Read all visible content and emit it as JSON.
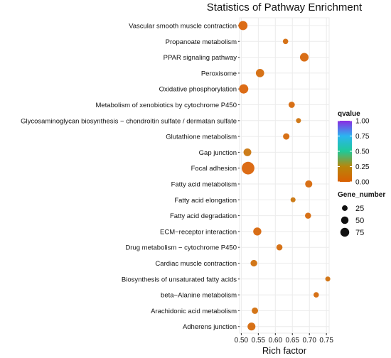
{
  "chart_data": {
    "type": "scatter",
    "title": "Statistics of Pathway Enrichment",
    "xlabel": "Rich factor",
    "ylabel": "",
    "xlim": [
      0.495,
      0.758
    ],
    "x_ticks": [
      "0.50",
      "0.55",
      "0.60",
      "0.65",
      "0.70",
      "0.75"
    ],
    "x_tick_values": [
      0.5,
      0.55,
      0.6,
      0.65,
      0.7,
      0.75
    ],
    "categories": [
      "Vascular smooth muscle contraction",
      "Propanoate metabolism",
      "PPAR signaling pathway",
      "Peroxisome",
      "Oxidative phosphorylation",
      "Metabolism of xenobiotics by cytochrome P450",
      "Glycosaminoglycan biosynthesis − chondroitin sulfate / dermatan sulfate",
      "Glutathione metabolism",
      "Gap junction",
      "Focal adhesion",
      "Fatty acid metabolism",
      "Fatty acid elongation",
      "Fatty acid degradation",
      "ECM−receptor interaction",
      "Drug metabolism − cytochrome P450",
      "Cardiac muscle contraction",
      "Biosynthesis of unsaturated fatty acids",
      "beta−Alanine metabolism",
      "Arachidonic acid metabolism",
      "Adherens junction"
    ],
    "points": [
      {
        "x": 0.505,
        "gene_number": 40,
        "qvalue": 0.0
      },
      {
        "x": 0.63,
        "gene_number": 10,
        "qvalue": 0.05
      },
      {
        "x": 0.685,
        "gene_number": 35,
        "qvalue": 0.02
      },
      {
        "x": 0.555,
        "gene_number": 32,
        "qvalue": 0.05
      },
      {
        "x": 0.507,
        "gene_number": 42,
        "qvalue": 0.0
      },
      {
        "x": 0.648,
        "gene_number": 15,
        "qvalue": 0.03
      },
      {
        "x": 0.668,
        "gene_number": 8,
        "qvalue": 0.1
      },
      {
        "x": 0.632,
        "gene_number": 16,
        "qvalue": 0.04
      },
      {
        "x": 0.518,
        "gene_number": 27,
        "qvalue": 0.12
      },
      {
        "x": 0.52,
        "gene_number": 88,
        "qvalue": 0.0
      },
      {
        "x": 0.698,
        "gene_number": 22,
        "qvalue": 0.03
      },
      {
        "x": 0.652,
        "gene_number": 8,
        "qvalue": 0.12
      },
      {
        "x": 0.696,
        "gene_number": 14,
        "qvalue": 0.04
      },
      {
        "x": 0.547,
        "gene_number": 30,
        "qvalue": 0.02
      },
      {
        "x": 0.612,
        "gene_number": 14,
        "qvalue": 0.05
      },
      {
        "x": 0.537,
        "gene_number": 18,
        "qvalue": 0.08
      },
      {
        "x": 0.754,
        "gene_number": 8,
        "qvalue": 0.08
      },
      {
        "x": 0.72,
        "gene_number": 10,
        "qvalue": 0.04
      },
      {
        "x": 0.54,
        "gene_number": 16,
        "qvalue": 0.07
      },
      {
        "x": 0.53,
        "gene_number": 28,
        "qvalue": 0.04
      }
    ],
    "color_legend": {
      "title": "qvalue",
      "ticks": [
        "0.00",
        "0.25",
        "0.50",
        "0.75",
        "1.00"
      ],
      "tick_values": [
        0.0,
        0.25,
        0.5,
        0.75,
        1.0
      ],
      "colors": [
        "#d95f02",
        "#b8860b",
        "#20c997",
        "#2bb5f0",
        "#8a2be2"
      ]
    },
    "size_legend": {
      "title": "Gene_number",
      "values": [
        25,
        50,
        75
      ],
      "labels": [
        "25",
        "50",
        "75"
      ]
    },
    "grid": true,
    "legend_position": "right",
    "panel_background": "#ffffff",
    "grid_color": "#ebebeb"
  }
}
